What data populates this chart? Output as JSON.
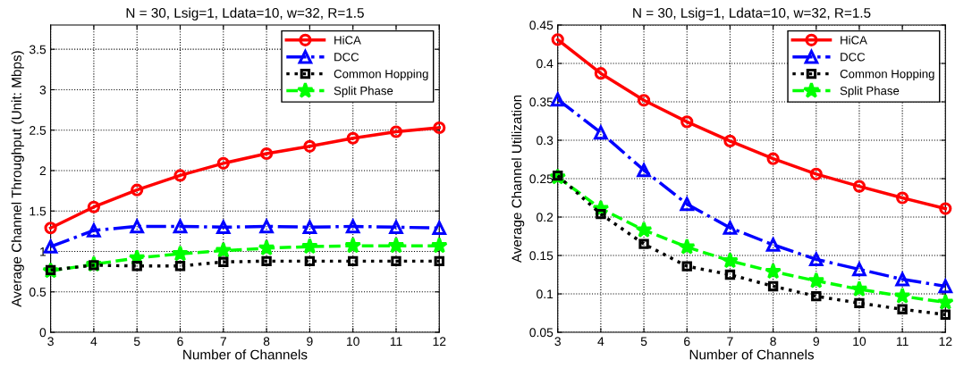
{
  "chart_data": [
    {
      "type": "line",
      "title": "N = 30, Lsig=1, Ldata=10, w=32, R=1.5",
      "xlabel": "Number of Channels",
      "ylabel": "Average Channel Throughput (Unit: Mbps)",
      "x": [
        3,
        4,
        5,
        6,
        7,
        8,
        9,
        10,
        11,
        12
      ],
      "xlim": [
        3,
        12
      ],
      "xticks": [
        3,
        4,
        5,
        6,
        7,
        8,
        9,
        10,
        11,
        12
      ],
      "ylim": [
        0,
        3.8
      ],
      "yticks": [
        0,
        0.5,
        1,
        1.5,
        2,
        2.5,
        3,
        3.5
      ],
      "grid": true,
      "legend": "top right",
      "series": [
        {
          "name": "HiCA",
          "color": "#ff0000",
          "marker": "circle",
          "line_style": "solid",
          "values": [
            1.29,
            1.55,
            1.76,
            1.94,
            2.09,
            2.21,
            2.3,
            2.4,
            2.48,
            2.53
          ]
        },
        {
          "name": "DCC",
          "color": "#0000ff",
          "marker": "triangle",
          "line_style": "dashdot",
          "values": [
            1.06,
            1.26,
            1.31,
            1.31,
            1.3,
            1.31,
            1.3,
            1.31,
            1.3,
            1.29
          ]
        },
        {
          "name": "Common Hopping",
          "color": "#000000",
          "marker": "square",
          "line_style": "dotted",
          "values": [
            0.77,
            0.83,
            0.82,
            0.82,
            0.87,
            0.88,
            0.88,
            0.88,
            0.88,
            0.88
          ]
        },
        {
          "name": "Split Phase",
          "color": "#00ff00",
          "marker": "star",
          "line_style": "dashed",
          "values": [
            0.76,
            0.84,
            0.92,
            0.97,
            1.01,
            1.04,
            1.06,
            1.07,
            1.07,
            1.07
          ]
        }
      ]
    },
    {
      "type": "line",
      "title": "N = 30, Lsig=1, Ldata=10, w=32, R=1.5",
      "xlabel": "Number of Channels",
      "ylabel": "Average Channel Utilization",
      "x": [
        3,
        4,
        5,
        6,
        7,
        8,
        9,
        10,
        11,
        12
      ],
      "xlim": [
        3,
        12
      ],
      "xticks": [
        3,
        4,
        5,
        6,
        7,
        8,
        9,
        10,
        11,
        12
      ],
      "ylim": [
        0.05,
        0.45
      ],
      "yticks": [
        0.05,
        0.1,
        0.15,
        0.2,
        0.25,
        0.3,
        0.35,
        0.4,
        0.45
      ],
      "grid": true,
      "legend": "top right",
      "series": [
        {
          "name": "HiCA",
          "color": "#ff0000",
          "marker": "circle",
          "line_style": "solid",
          "values": [
            0.431,
            0.387,
            0.352,
            0.324,
            0.299,
            0.276,
            0.256,
            0.24,
            0.225,
            0.211
          ]
        },
        {
          "name": "DCC",
          "color": "#0000ff",
          "marker": "triangle",
          "line_style": "dashdot",
          "values": [
            0.353,
            0.31,
            0.261,
            0.217,
            0.186,
            0.164,
            0.145,
            0.132,
            0.119,
            0.11
          ]
        },
        {
          "name": "Common Hopping",
          "color": "#000000",
          "marker": "square",
          "line_style": "dotted",
          "values": [
            0.254,
            0.204,
            0.165,
            0.136,
            0.125,
            0.11,
            0.097,
            0.088,
            0.08,
            0.073
          ]
        },
        {
          "name": "Split Phase",
          "color": "#00ff00",
          "marker": "star",
          "line_style": "dashed",
          "values": [
            0.252,
            0.211,
            0.183,
            0.161,
            0.143,
            0.129,
            0.117,
            0.106,
            0.097,
            0.089
          ]
        }
      ]
    }
  ]
}
